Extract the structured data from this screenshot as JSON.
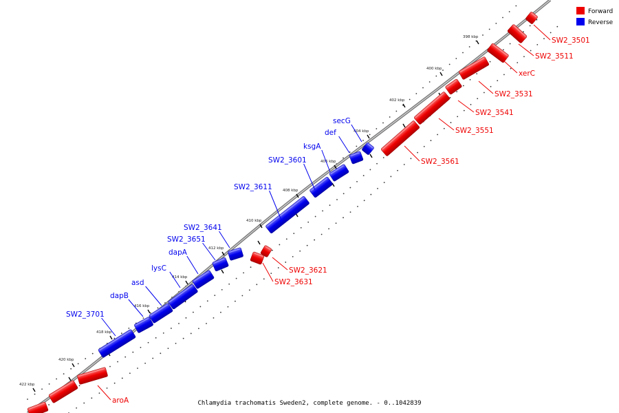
{
  "caption": "Chlamydia trachomatis Sweden2, complete genome. - 0..1042839",
  "legend": [
    {
      "label": "Forward",
      "color": "#ee0000"
    },
    {
      "label": "Reverse",
      "color": "#0000ee"
    }
  ],
  "colors": {
    "forward": "#ee0000",
    "reverse": "#0000ee",
    "backbone": "#8a8a8a"
  },
  "scale_ticks": [
    "398 kbp",
    "400 kbp",
    "402 kbp",
    "404 kbp",
    "406 kbp",
    "408 kbp",
    "410 kbp",
    "412 kbp",
    "414 kbp",
    "416 kbp",
    "418 kbp",
    "420 kbp",
    "422 kbp"
  ],
  "forward_genes": [
    "SW2_3501",
    "SW2_3511",
    "xerC",
    "SW2_3531",
    "SW2_3541",
    "SW2_3551",
    "SW2_3561",
    "SW2_3621",
    "SW2_3631",
    "aroA"
  ],
  "reverse_genes": [
    "secG",
    "def",
    "ksgA",
    "SW2_3601",
    "SW2_3611",
    "SW2_3641",
    "SW2_3651",
    "dapA",
    "lysC",
    "asd",
    "dapB",
    "SW2_3701"
  ]
}
